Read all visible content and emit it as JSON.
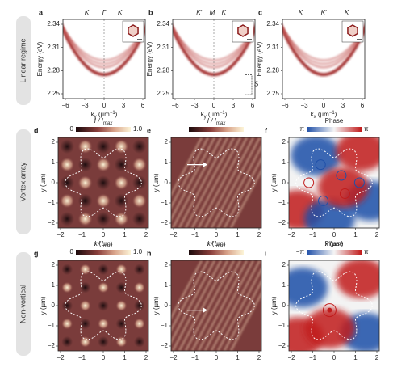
{
  "row_labels": [
    "Linear regime",
    "Vortex array",
    "Non-vortical"
  ],
  "rows": [
    {
      "yticks": [
        "2.34",
        "2.31",
        "2.28",
        "2.25"
      ],
      "xticks": [
        "−6",
        "−3",
        "0",
        "3",
        "6"
      ],
      "y_label": "Energy (eV)",
      "panels": [
        {
          "letter": "a",
          "top_labels": [
            "K",
            "Γ",
            "K′"
          ],
          "x_label": [
            "k",
            "y",
            " (µm",
            "−1",
            ")"
          ]
        },
        {
          "letter": "b",
          "top_labels": [
            "K′",
            "M",
            "K"
          ],
          "x_label": [
            "k",
            "y",
            " (µm",
            "−1",
            ")"
          ],
          "annotation": "S"
        },
        {
          "letter": "c",
          "top_labels": [
            "K",
            "K′",
            "K"
          ],
          "x_label": [
            "k",
            "x",
            " (µm",
            "−1",
            ")"
          ]
        }
      ]
    },
    {
      "yticks": [
        "2",
        "1",
        "0",
        "−1",
        "−2"
      ],
      "xticks": [
        "−2",
        "−1",
        "0",
        "1",
        "2"
      ],
      "y_label": "y (µm)",
      "x_label": "x (µm)",
      "panels": [
        {
          "letter": "d",
          "colorbar": {
            "label": [
              "I / I",
              "max"
            ],
            "min": "0",
            "max": "1.0"
          }
        },
        {
          "letter": "e",
          "colorbar": {
            "label": [
              "I / I",
              "max"
            ]
          }
        },
        {
          "letter": "f",
          "colorbar": {
            "label": [
              "Phase"
            ],
            "min": "−π",
            "max": "π"
          }
        }
      ]
    },
    {
      "yticks": [
        "2",
        "1",
        "0",
        "−1",
        "−2"
      ],
      "xticks": [
        "−2",
        "−1",
        "0",
        "1",
        "2"
      ],
      "y_label": "y (µm)",
      "panels": [
        {
          "letter": "g",
          "colorbar": {
            "label": [
              "I / I",
              "max"
            ],
            "min": "0",
            "max": "1.0"
          }
        },
        {
          "letter": "h",
          "colorbar": {
            "label": [
              "I / I",
              "max"
            ]
          }
        },
        {
          "letter": "i",
          "colorbar": {
            "label": [
              "Phase"
            ],
            "min": "−π",
            "max": "π"
          }
        }
      ]
    }
  ]
}
